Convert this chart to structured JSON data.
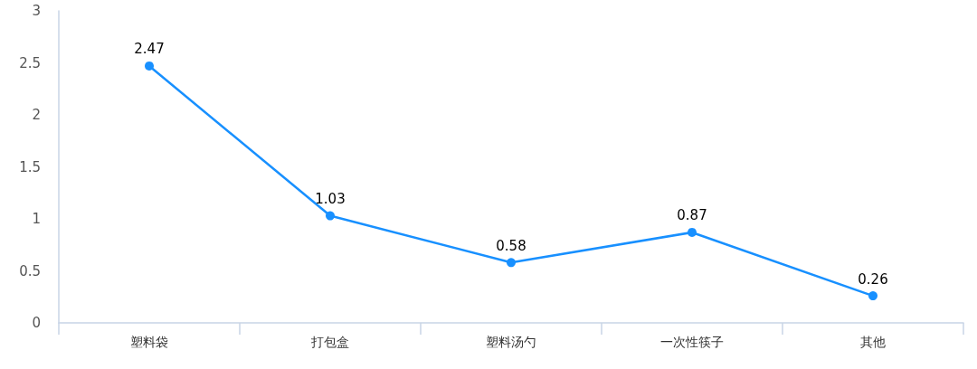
{
  "chart_data": {
    "type": "line",
    "categories": [
      "塑料袋",
      "打包盒",
      "塑料汤勺",
      "一次性筷子",
      "其他"
    ],
    "series": [
      {
        "color": "#1890ff",
        "values": [
          2.47,
          1.03,
          0.58,
          0.87,
          0.26
        ]
      }
    ],
    "ylim": [
      0,
      3
    ],
    "yticks": [
      0,
      0.5,
      1,
      1.5,
      2,
      2.5,
      3
    ],
    "marker": "circle",
    "line_style": "solid",
    "data_labels": true
  }
}
